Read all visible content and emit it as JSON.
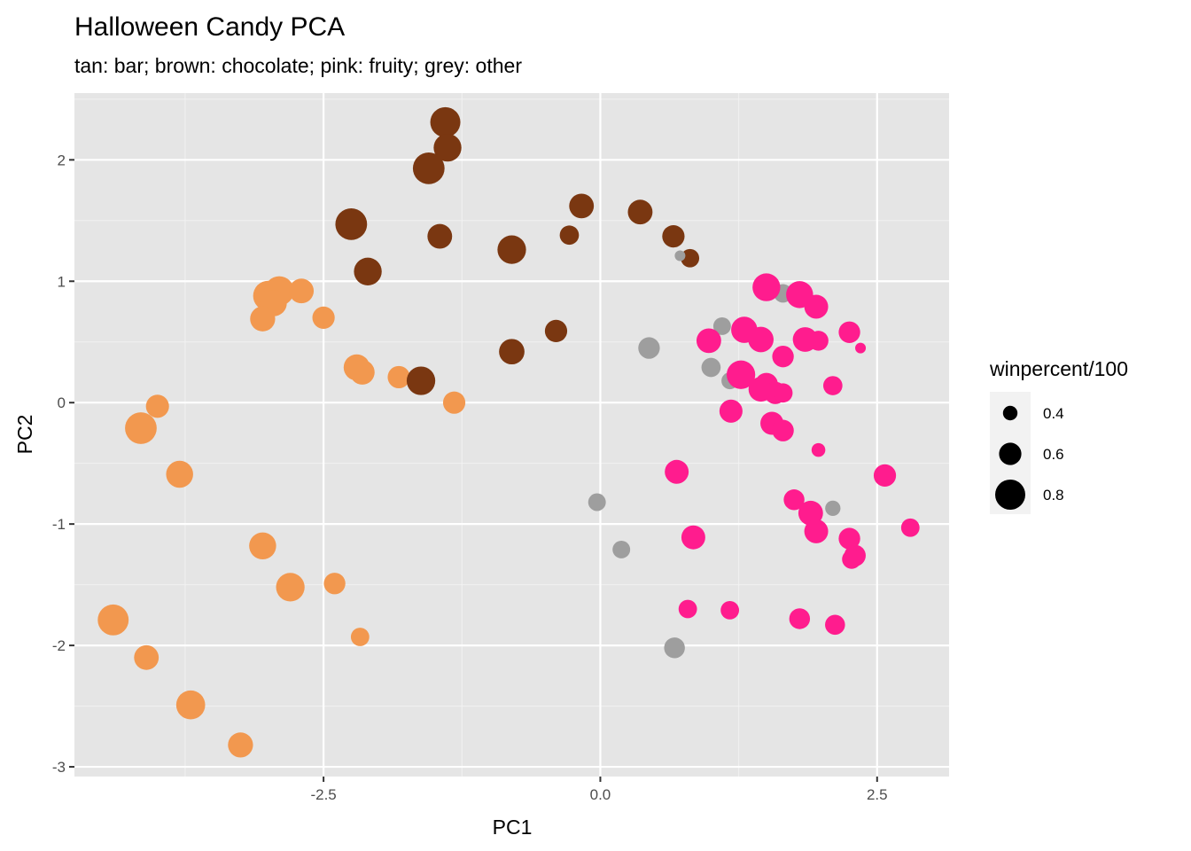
{
  "chart_data": {
    "type": "scatter",
    "title": "Halloween Candy PCA",
    "subtitle": "tan: bar; brown: chocolate; pink: fruity; grey: other",
    "xlabel": "PC1",
    "ylabel": "PC2",
    "xlim": [
      -4.75,
      3.15
    ],
    "ylim": [
      -3.08,
      2.55
    ],
    "x_ticks": [
      {
        "value": -2.5,
        "label": "-2.5"
      },
      {
        "value": 0,
        "label": "0.0"
      },
      {
        "value": 2.5,
        "label": "2.5"
      }
    ],
    "y_ticks": [
      {
        "value": 2,
        "label": "2"
      },
      {
        "value": 1,
        "label": "1"
      },
      {
        "value": 0,
        "label": "0"
      },
      {
        "value": -1,
        "label": "-1"
      },
      {
        "value": -2,
        "label": "-2"
      },
      {
        "value": -3,
        "label": "-3"
      }
    ],
    "grid": true,
    "panel_background": "#e5e5e5",
    "colors": {
      "bar": "#f2984f",
      "chocolate": "#7a3711",
      "fruity": "#ff1c8e",
      "other": "#9e9e9e"
    },
    "legend": {
      "title": "winpercent/100",
      "position": "right",
      "entries": [
        {
          "value": 0.4,
          "label": "0.4"
        },
        {
          "value": 0.6,
          "label": "0.6"
        },
        {
          "value": 0.8,
          "label": "0.8"
        }
      ]
    },
    "series": [
      {
        "category": "bar",
        "points": [
          {
            "x": -3.0,
            "y": 0.88,
            "size": 0.8
          },
          {
            "x": -2.9,
            "y": 0.92,
            "size": 0.78
          },
          {
            "x": -2.95,
            "y": 0.82,
            "size": 0.7
          },
          {
            "x": -2.7,
            "y": 0.92,
            "size": 0.66
          },
          {
            "x": -3.05,
            "y": 0.69,
            "size": 0.67
          },
          {
            "x": -2.5,
            "y": 0.7,
            "size": 0.6
          },
          {
            "x": -2.2,
            "y": 0.29,
            "size": 0.7
          },
          {
            "x": -2.15,
            "y": 0.25,
            "size": 0.66
          },
          {
            "x": -1.82,
            "y": 0.21,
            "size": 0.6
          },
          {
            "x": -1.32,
            "y": 0.0,
            "size": 0.6
          },
          {
            "x": -4.0,
            "y": -0.03,
            "size": 0.62
          },
          {
            "x": -4.15,
            "y": -0.21,
            "size": 0.84
          },
          {
            "x": -3.8,
            "y": -0.59,
            "size": 0.72
          },
          {
            "x": -3.05,
            "y": -1.18,
            "size": 0.72
          },
          {
            "x": -2.8,
            "y": -1.52,
            "size": 0.76
          },
          {
            "x": -2.4,
            "y": -1.49,
            "size": 0.58
          },
          {
            "x": -2.17,
            "y": -1.93,
            "size": 0.5
          },
          {
            "x": -4.4,
            "y": -1.79,
            "size": 0.82
          },
          {
            "x": -4.1,
            "y": -2.1,
            "size": 0.66
          },
          {
            "x": -3.7,
            "y": -2.49,
            "size": 0.77
          },
          {
            "x": -3.25,
            "y": -2.82,
            "size": 0.67
          }
        ]
      },
      {
        "category": "chocolate",
        "points": [
          {
            "x": -1.4,
            "y": 2.31,
            "size": 0.8
          },
          {
            "x": -1.38,
            "y": 2.1,
            "size": 0.74
          },
          {
            "x": -1.55,
            "y": 1.93,
            "size": 0.84
          },
          {
            "x": -2.25,
            "y": 1.47,
            "size": 0.84
          },
          {
            "x": -2.1,
            "y": 1.08,
            "size": 0.74
          },
          {
            "x": -1.45,
            "y": 1.37,
            "size": 0.66
          },
          {
            "x": -0.8,
            "y": 1.26,
            "size": 0.76
          },
          {
            "x": -0.17,
            "y": 1.62,
            "size": 0.66
          },
          {
            "x": -0.28,
            "y": 1.38,
            "size": 0.52
          },
          {
            "x": 0.36,
            "y": 1.57,
            "size": 0.66
          },
          {
            "x": 0.66,
            "y": 1.37,
            "size": 0.6
          },
          {
            "x": 0.81,
            "y": 1.19,
            "size": 0.5
          },
          {
            "x": -0.4,
            "y": 0.59,
            "size": 0.6
          },
          {
            "x": -0.8,
            "y": 0.42,
            "size": 0.68
          },
          {
            "x": -1.62,
            "y": 0.18,
            "size": 0.76
          }
        ]
      },
      {
        "category": "other",
        "points": [
          {
            "x": 0.72,
            "y": 1.21,
            "size": 0.3
          },
          {
            "x": 1.65,
            "y": 0.9,
            "size": 0.5
          },
          {
            "x": 1.1,
            "y": 0.63,
            "size": 0.48
          },
          {
            "x": 0.44,
            "y": 0.45,
            "size": 0.58
          },
          {
            "x": 1.0,
            "y": 0.29,
            "size": 0.52
          },
          {
            "x": 1.17,
            "y": 0.18,
            "size": 0.46
          },
          {
            "x": -0.03,
            "y": -0.82,
            "size": 0.48
          },
          {
            "x": 0.19,
            "y": -1.21,
            "size": 0.48
          },
          {
            "x": 2.1,
            "y": -0.87,
            "size": 0.42
          },
          {
            "x": 0.67,
            "y": -2.02,
            "size": 0.56
          }
        ]
      },
      {
        "category": "fruity",
        "points": [
          {
            "x": 1.5,
            "y": 0.95,
            "size": 0.74
          },
          {
            "x": 1.8,
            "y": 0.89,
            "size": 0.72
          },
          {
            "x": 1.95,
            "y": 0.79,
            "size": 0.64
          },
          {
            "x": 2.25,
            "y": 0.58,
            "size": 0.58
          },
          {
            "x": 2.35,
            "y": 0.45,
            "size": 0.3
          },
          {
            "x": 1.3,
            "y": 0.6,
            "size": 0.7
          },
          {
            "x": 1.45,
            "y": 0.52,
            "size": 0.68
          },
          {
            "x": 1.85,
            "y": 0.52,
            "size": 0.66
          },
          {
            "x": 1.97,
            "y": 0.51,
            "size": 0.54
          },
          {
            "x": 0.98,
            "y": 0.51,
            "size": 0.66
          },
          {
            "x": 1.65,
            "y": 0.38,
            "size": 0.58
          },
          {
            "x": 1.27,
            "y": 0.23,
            "size": 0.76
          },
          {
            "x": 1.5,
            "y": 0.15,
            "size": 0.62
          },
          {
            "x": 1.45,
            "y": 0.11,
            "size": 0.66
          },
          {
            "x": 1.58,
            "y": 0.08,
            "size": 0.6
          },
          {
            "x": 1.65,
            "y": 0.08,
            "size": 0.52
          },
          {
            "x": 2.1,
            "y": 0.14,
            "size": 0.52
          },
          {
            "x": 1.18,
            "y": -0.07,
            "size": 0.62
          },
          {
            "x": 1.55,
            "y": -0.17,
            "size": 0.62
          },
          {
            "x": 1.65,
            "y": -0.23,
            "size": 0.58
          },
          {
            "x": 1.97,
            "y": -0.39,
            "size": 0.38
          },
          {
            "x": 0.69,
            "y": -0.57,
            "size": 0.64
          },
          {
            "x": 2.57,
            "y": -0.6,
            "size": 0.6
          },
          {
            "x": 1.75,
            "y": -0.8,
            "size": 0.56
          },
          {
            "x": 1.9,
            "y": -0.91,
            "size": 0.66
          },
          {
            "x": 1.95,
            "y": -1.06,
            "size": 0.64
          },
          {
            "x": 2.25,
            "y": -1.12,
            "size": 0.58
          },
          {
            "x": 2.3,
            "y": -1.26,
            "size": 0.58
          },
          {
            "x": 2.27,
            "y": -1.29,
            "size": 0.52
          },
          {
            "x": 2.8,
            "y": -1.03,
            "size": 0.5
          },
          {
            "x": 0.84,
            "y": -1.11,
            "size": 0.64
          },
          {
            "x": 0.79,
            "y": -1.7,
            "size": 0.5
          },
          {
            "x": 1.17,
            "y": -1.71,
            "size": 0.5
          },
          {
            "x": 1.8,
            "y": -1.78,
            "size": 0.56
          },
          {
            "x": 2.12,
            "y": -1.83,
            "size": 0.54
          }
        ]
      }
    ]
  }
}
